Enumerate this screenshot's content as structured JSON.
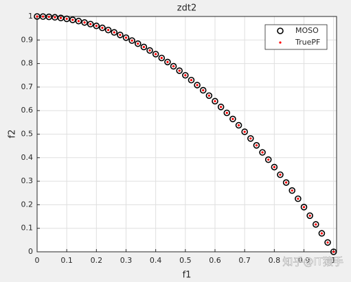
{
  "chart_data": {
    "type": "scatter",
    "title": "zdt2",
    "xlabel": "f1",
    "ylabel": "f2",
    "xlim": [
      0,
      1.01
    ],
    "ylim": [
      0,
      1
    ],
    "xticks": [
      0,
      0.1,
      0.2,
      0.3,
      0.4,
      0.5,
      0.6,
      0.7,
      0.8,
      0.9,
      1
    ],
    "yticks": [
      0,
      0.1,
      0.2,
      0.3,
      0.4,
      0.5,
      0.6,
      0.7,
      0.8,
      0.9,
      1
    ],
    "grid": true,
    "legend_position": "top-right",
    "series": [
      {
        "name": "MOSO",
        "color": "#000000",
        "marker": "circle",
        "x": [
          0,
          0.02,
          0.04,
          0.06,
          0.08,
          0.1,
          0.12,
          0.14,
          0.16,
          0.18,
          0.2,
          0.22,
          0.24,
          0.26,
          0.28,
          0.3,
          0.32,
          0.34,
          0.36,
          0.38,
          0.4,
          0.42,
          0.44,
          0.46,
          0.48,
          0.5,
          0.52,
          0.54,
          0.56,
          0.58,
          0.6,
          0.62,
          0.64,
          0.66,
          0.68,
          0.7,
          0.72,
          0.74,
          0.76,
          0.78,
          0.8,
          0.82,
          0.84,
          0.86,
          0.88,
          0.9,
          0.92,
          0.94,
          0.96,
          0.98,
          1
        ],
        "values": [
          1,
          0.9996,
          0.9984,
          0.9964,
          0.9936,
          0.99,
          0.9856,
          0.9804,
          0.9744,
          0.9676,
          0.96,
          0.9516,
          0.9424,
          0.9324,
          0.9216,
          0.91,
          0.8976,
          0.8844,
          0.8704,
          0.8556,
          0.84,
          0.8236,
          0.8064,
          0.7884,
          0.7696,
          0.75,
          0.7296,
          0.7084,
          0.6864,
          0.6636,
          0.64,
          0.6156,
          0.5904,
          0.5644,
          0.5376,
          0.51,
          0.4816,
          0.4524,
          0.4224,
          0.3916,
          0.36,
          0.3276,
          0.2944,
          0.2604,
          0.2256,
          0.19,
          0.1536,
          0.1164,
          0.0784,
          0.0396,
          0
        ]
      },
      {
        "name": "TruePF",
        "color": "#ff0000",
        "marker": "dot",
        "x": [
          0,
          0.02,
          0.04,
          0.06,
          0.08,
          0.1,
          0.12,
          0.14,
          0.16,
          0.18,
          0.2,
          0.22,
          0.24,
          0.26,
          0.28,
          0.3,
          0.32,
          0.34,
          0.36,
          0.38,
          0.4,
          0.42,
          0.44,
          0.46,
          0.48,
          0.5,
          0.52,
          0.54,
          0.56,
          0.58,
          0.6,
          0.62,
          0.64,
          0.66,
          0.68,
          0.7,
          0.72,
          0.74,
          0.76,
          0.78,
          0.8,
          0.82,
          0.84,
          0.86,
          0.88,
          0.9,
          0.92,
          0.94,
          0.96,
          0.98,
          1
        ],
        "values": [
          1,
          0.9996,
          0.9984,
          0.9964,
          0.9936,
          0.99,
          0.9856,
          0.9804,
          0.9744,
          0.9676,
          0.96,
          0.9516,
          0.9424,
          0.9324,
          0.9216,
          0.91,
          0.8976,
          0.8844,
          0.8704,
          0.8556,
          0.84,
          0.8236,
          0.8064,
          0.7884,
          0.7696,
          0.75,
          0.7296,
          0.7084,
          0.6864,
          0.6636,
          0.64,
          0.6156,
          0.5904,
          0.5644,
          0.5376,
          0.51,
          0.4816,
          0.4524,
          0.4224,
          0.3916,
          0.36,
          0.3276,
          0.2944,
          0.2604,
          0.2256,
          0.19,
          0.1536,
          0.1164,
          0.0784,
          0.0396,
          0
        ]
      }
    ],
    "watermark": "知乎@IT猿手"
  }
}
